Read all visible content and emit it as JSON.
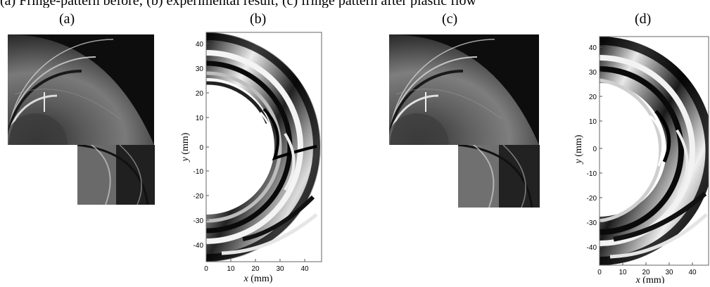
{
  "caption_fragment": "(a) Fringe-pattern before; (b) experimental result; (c) fringe pattern after plastic flow",
  "panels": {
    "a": {
      "label": "(a)"
    },
    "b": {
      "label": "(b)"
    },
    "c": {
      "label": "(c)"
    },
    "d": {
      "label": "(d)"
    }
  },
  "plot_axes": {
    "xlabel_var": "x",
    "xlabel_unit": " (mm)",
    "ylabel_var": "y",
    "ylabel_unit": " (mm)",
    "x_ticks": [
      "0",
      "10",
      "20",
      "30",
      "40"
    ],
    "y_ticks": [
      "40",
      "30",
      "20",
      "10",
      "0",
      "-10",
      "-20",
      "-30",
      "-40"
    ]
  }
}
